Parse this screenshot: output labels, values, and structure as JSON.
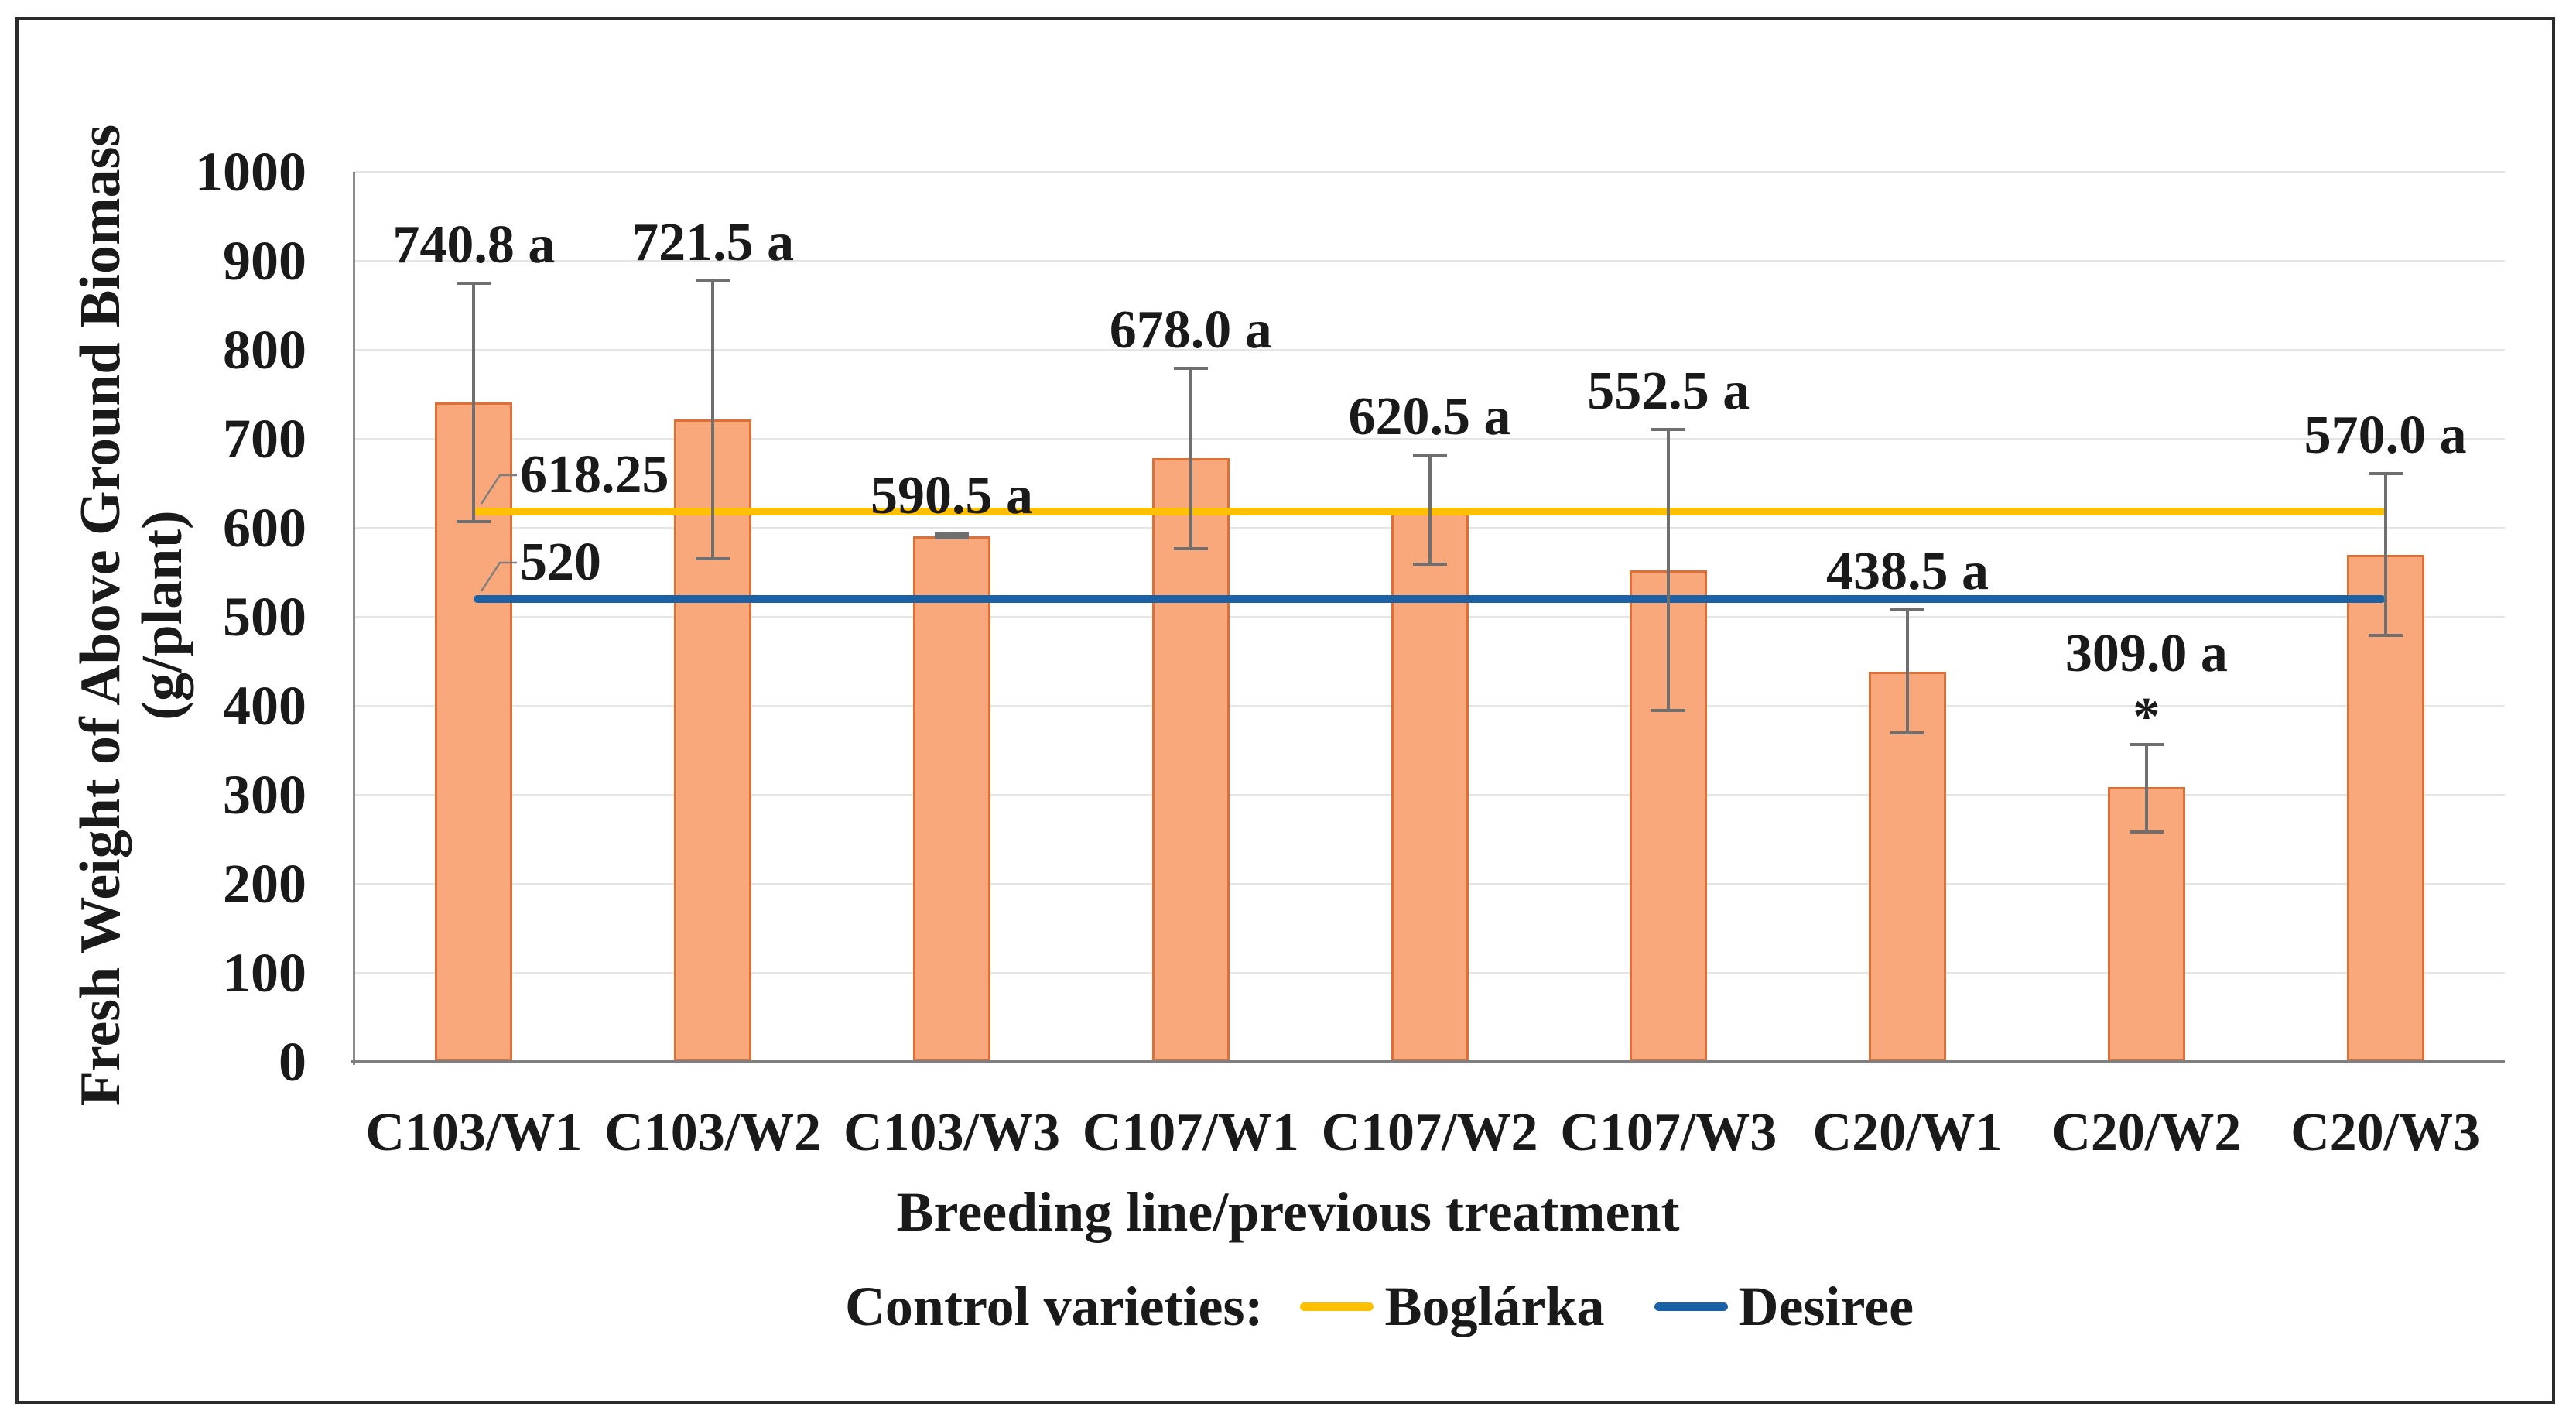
{
  "figure": {
    "background": "#ffffff",
    "frame_color": "#2b2b2b"
  },
  "y_axis": {
    "title_line1": "Fresh Weight of Above Ground Biomass",
    "title_line2": "(g/plant)",
    "min": 0,
    "max": 1000,
    "tick_step": 100,
    "tick_labels": [
      "0",
      "100",
      "200",
      "300",
      "400",
      "500",
      "600",
      "700",
      "800",
      "900",
      "1000"
    ]
  },
  "x_axis": {
    "title": "Breeding line/previous  treatment"
  },
  "legend": {
    "prefix": "Control varieties:",
    "items": [
      {
        "label": "Boglárka",
        "color": "#FFC000"
      },
      {
        "label": "Desiree",
        "color": "#1B61A5"
      }
    ]
  },
  "chart_data": {
    "type": "bar",
    "title": "",
    "xlabel": "Breeding line/previous treatment",
    "ylabel": "Fresh Weight of Above Ground Biomass (g/plant)",
    "ylim": [
      0,
      1000
    ],
    "ytick_step": 100,
    "grid": "horizontal",
    "legend_position": "bottom",
    "bar_color": "#f9a87c",
    "bar_border_color": "#de6f35",
    "error_bar_color": "#6f6f6f",
    "categories": [
      "C103/W1",
      "C103/W2",
      "C103/W3",
      "C107/W1",
      "C107/W2",
      "C107/W3",
      "C20/W1",
      "C20/W2",
      "C20/W3"
    ],
    "values": [
      740.8,
      721.5,
      590.5,
      678.0,
      620.5,
      552.5,
      438.5,
      309.0,
      570.0
    ],
    "value_labels": [
      "740.8 a",
      "721.5 a",
      "590.5 a",
      "678.0 a",
      "620.5 a",
      "552.5 a",
      "438.5 a",
      "309.0 a",
      "570.0 a"
    ],
    "error_bars": {
      "plus": [
        135,
        157,
        3,
        102,
        62,
        159,
        70,
        48,
        92
      ],
      "minus": [
        135,
        157,
        3,
        102,
        62,
        159,
        70,
        52,
        92
      ]
    },
    "annotations": [
      {
        "category": "C20/W2",
        "text": "*"
      }
    ],
    "reference_lines": [
      {
        "series": "Boglárka",
        "value": 618.25,
        "label": "618.25",
        "color": "#FFC000"
      },
      {
        "series": "Desiree",
        "value": 520,
        "label": "520",
        "color": "#1B61A5"
      }
    ]
  }
}
